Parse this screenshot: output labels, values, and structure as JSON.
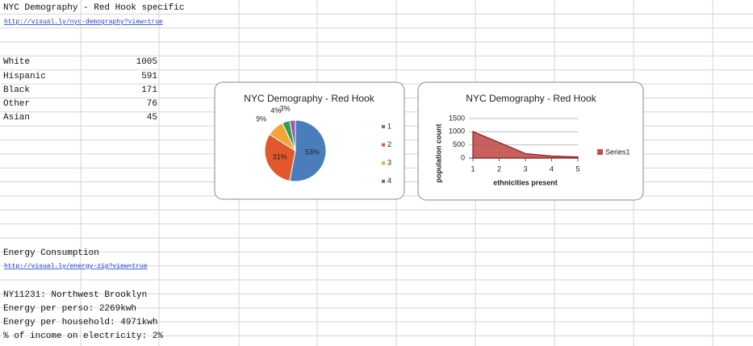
{
  "sheet": {
    "title": "NYC Demography - Red Hook specific",
    "link": "http://visual.ly/nyc-demography?view=true",
    "rows": [
      [
        "White",
        1005
      ],
      [
        "Hispanic",
        591
      ],
      [
        "Black",
        171
      ],
      [
        "Other",
        76
      ],
      [
        "Asian",
        45
      ]
    ],
    "energy_title": "Energy Consumption",
    "energy_link": "http://visual.ly/energy-zip?view=true",
    "energy_lines": [
      "NY11231: Northwest Brooklyn",
      "Energy per perso: 2269kwh",
      "Energy per household: 4971kwh",
      "% of income on electricity: 2%"
    ]
  },
  "chart_data": [
    {
      "type": "pie",
      "title": "NYC Demography - Red Hook",
      "categories": [
        "1",
        "2",
        "3",
        "4",
        null
      ],
      "values": [
        53,
        31,
        9,
        4,
        3
      ],
      "value_labels": [
        "53%",
        "31%",
        "9%",
        "4%",
        "3%"
      ],
      "colors": [
        "#4a7ebb",
        "#e2572b",
        "#f5a43a",
        "#2e9e48",
        "#8e5db7"
      ],
      "legend": "right"
    },
    {
      "type": "area",
      "title": "NYC Demography - Red Hook",
      "x_label": "ethnicities present",
      "y_label": "population count",
      "x": [
        1,
        2,
        3,
        4,
        5
      ],
      "xlim": [
        1,
        5
      ],
      "xticks": [
        1,
        2,
        3,
        4,
        5
      ],
      "ylim": [
        0,
        1500
      ],
      "yticks": [
        0,
        500,
        1000,
        1500
      ],
      "grid": true,
      "legend": "right",
      "series": [
        {
          "name": "Series1",
          "color": "#c0504d",
          "values": [
            1005,
            591,
            171,
            76,
            45
          ]
        }
      ]
    }
  ]
}
